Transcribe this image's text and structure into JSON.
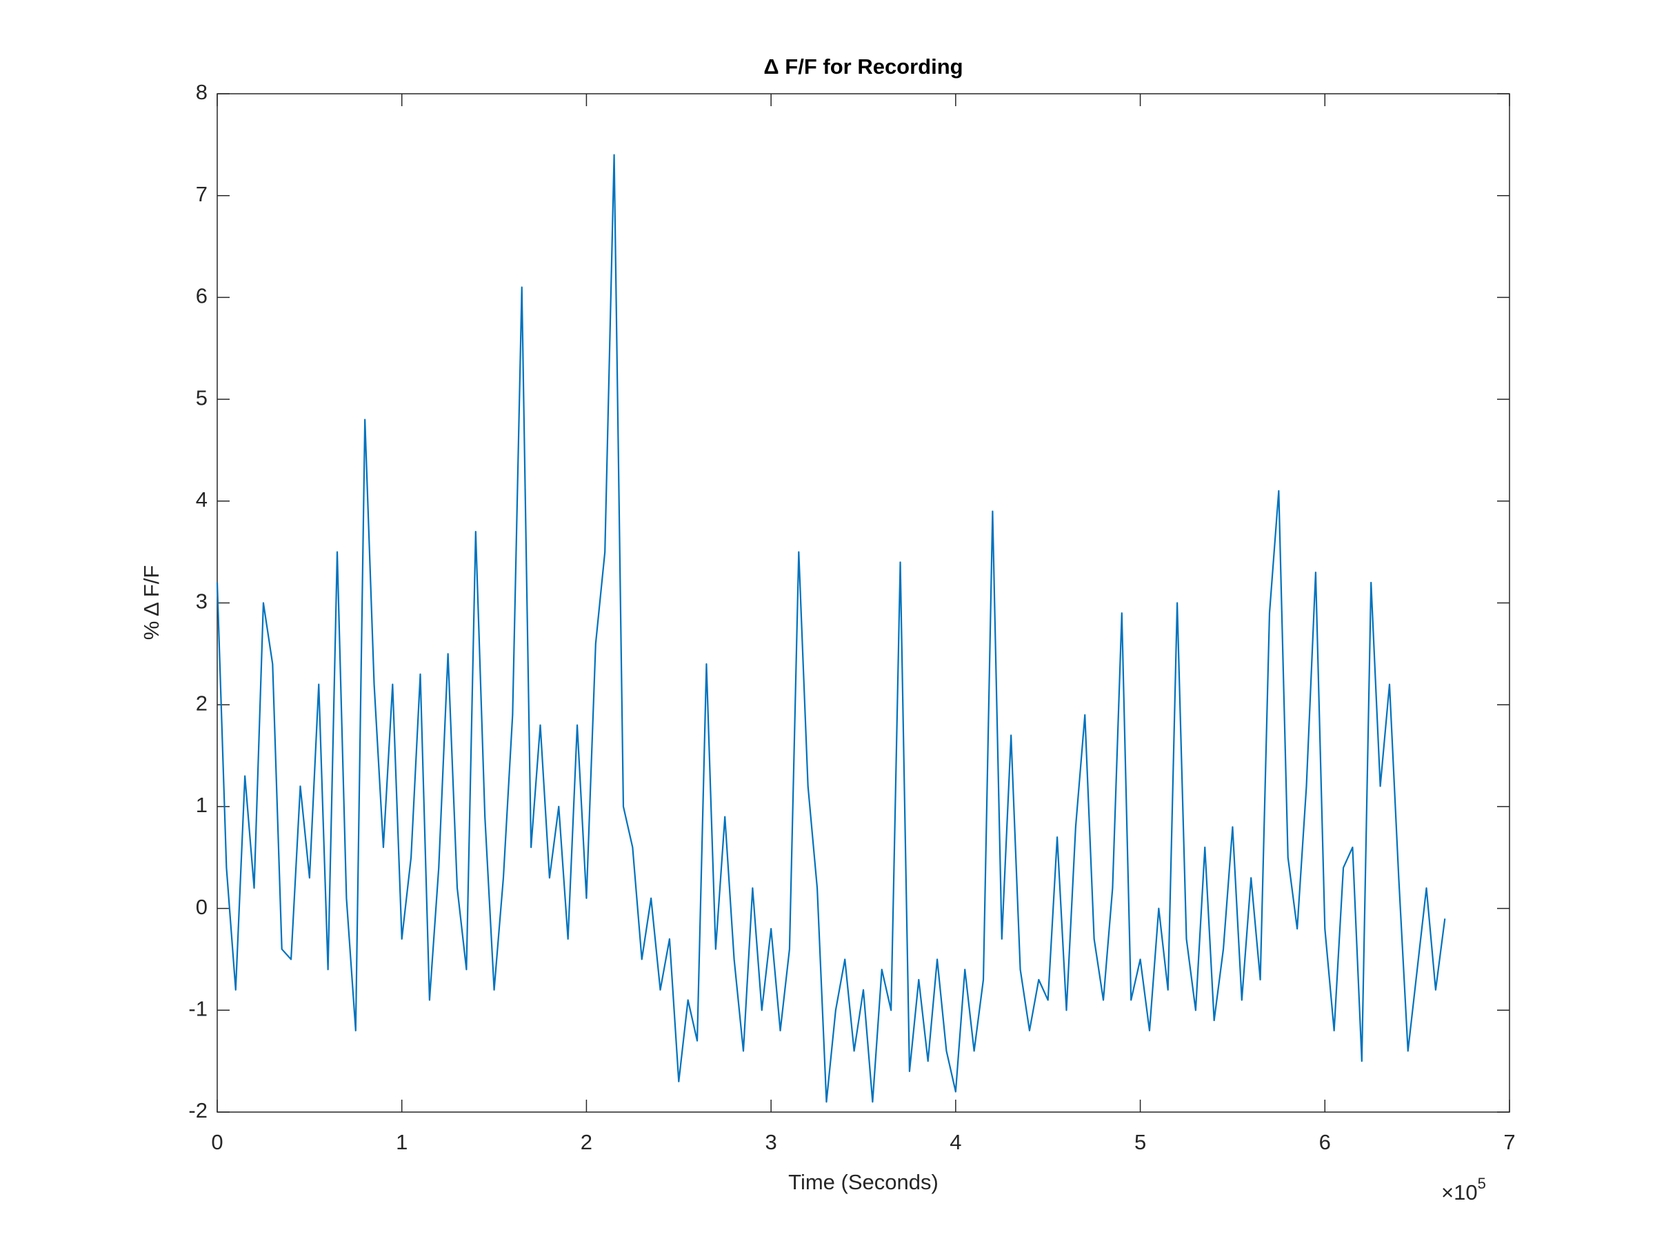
{
  "chart_data": {
    "type": "line",
    "title": "Δ F/F for Recording",
    "x_label": "Time (Seconds)",
    "y_label": "% Δ F/F",
    "x_multiplier": {
      "base": "×10",
      "exponent": "5"
    },
    "color": "#0072BD",
    "grid": false,
    "x": [
      0,
      5000,
      10000,
      15000,
      20000,
      25000,
      30000,
      35000,
      40000,
      45000,
      50000,
      55000,
      60000,
      65000,
      70000,
      75000,
      80000,
      85000,
      90000,
      95000,
      100000,
      105000,
      110000,
      115000,
      120000,
      125000,
      130000,
      135000,
      140000,
      145000,
      150000,
      155000,
      160000,
      165000,
      170000,
      175000,
      180000,
      185000,
      190000,
      195000,
      200000,
      205000,
      210000,
      215000,
      220000,
      225000,
      230000,
      235000,
      240000,
      245000,
      250000,
      255000,
      260000,
      265000,
      270000,
      275000,
      280000,
      285000,
      290000,
      295000,
      300000,
      305000,
      310000,
      315000,
      320000,
      325000,
      330000,
      335000,
      340000,
      345000,
      350000,
      355000,
      360000,
      365000,
      370000,
      375000,
      380000,
      385000,
      390000,
      395000,
      400000,
      405000,
      410000,
      415000,
      420000,
      425000,
      430000,
      435000,
      440000,
      445000,
      450000,
      455000,
      460000,
      465000,
      470000,
      475000,
      480000,
      485000,
      490000,
      495000,
      500000,
      505000,
      510000,
      515000,
      520000,
      525000,
      530000,
      535000,
      540000,
      545000,
      550000,
      555000,
      560000,
      565000,
      570000,
      575000,
      580000,
      585000,
      590000,
      595000,
      600000,
      605000,
      610000,
      615000,
      620000,
      625000,
      630000,
      635000,
      640000,
      645000,
      650000,
      655000,
      660000,
      665000
    ],
    "values": [
      3.2,
      0.4,
      -0.8,
      1.3,
      0.2,
      3.0,
      2.4,
      -0.4,
      -0.5,
      1.2,
      0.3,
      2.2,
      -0.6,
      3.5,
      0.1,
      -1.2,
      4.8,
      2.2,
      0.6,
      2.2,
      -0.3,
      0.5,
      2.3,
      -0.9,
      0.4,
      2.5,
      0.2,
      -0.6,
      3.7,
      0.9,
      -0.8,
      0.3,
      1.9,
      6.1,
      0.6,
      1.8,
      0.3,
      1.0,
      -0.3,
      1.8,
      0.1,
      2.6,
      3.5,
      7.4,
      1.0,
      0.6,
      -0.5,
      0.1,
      -0.8,
      -0.3,
      -1.7,
      -0.9,
      -1.3,
      2.4,
      -0.4,
      0.9,
      -0.5,
      -1.4,
      0.2,
      -1.0,
      -0.2,
      -1.2,
      -0.4,
      3.5,
      1.2,
      0.2,
      -1.9,
      -1.0,
      -0.5,
      -1.4,
      -0.8,
      -1.9,
      -0.6,
      -1.0,
      3.4,
      -1.6,
      -0.7,
      -1.5,
      -0.5,
      -1.4,
      -1.8,
      -0.6,
      -1.4,
      -0.7,
      3.9,
      -0.3,
      1.7,
      -0.6,
      -1.2,
      -0.7,
      -0.9,
      0.7,
      -1.0,
      0.8,
      1.9,
      -0.3,
      -0.9,
      0.2,
      2.9,
      -0.9,
      -0.5,
      -1.2,
      0.0,
      -0.8,
      3.0,
      -0.3,
      -1.0,
      0.6,
      -1.1,
      -0.4,
      0.8,
      -0.9,
      0.3,
      -0.7,
      2.9,
      4.1,
      0.5,
      -0.2,
      1.2,
      3.3,
      -0.2,
      -1.2,
      0.4,
      0.6,
      -1.5,
      3.2,
      1.2,
      2.2,
      0.3,
      -1.4,
      -0.6,
      0.2,
      -0.8,
      -0.1
    ],
    "xlim": [
      0,
      700000
    ],
    "xticks": [
      {
        "value": 0,
        "label": "0"
      },
      {
        "value": 100000,
        "label": "1"
      },
      {
        "value": 200000,
        "label": "2"
      },
      {
        "value": 300000,
        "label": "3"
      },
      {
        "value": 400000,
        "label": "4"
      },
      {
        "value": 500000,
        "label": "5"
      },
      {
        "value": 600000,
        "label": "6"
      },
      {
        "value": 700000,
        "label": "7"
      }
    ],
    "ylim": [
      -2,
      8
    ],
    "yticks": [
      -2,
      -1,
      0,
      1,
      2,
      3,
      4,
      5,
      6,
      7,
      8
    ]
  }
}
